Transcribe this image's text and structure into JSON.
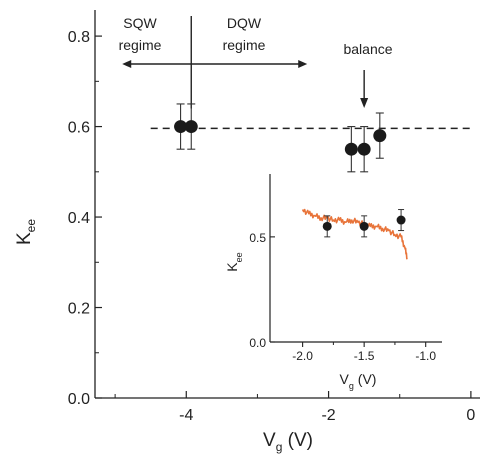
{
  "chart_data": [
    {
      "type": "scatter",
      "title": "",
      "xlabel": "V",
      "xlabel_sub": "g",
      "xlabel_unit": " (V)",
      "ylabel": "K",
      "ylabel_sub": "ee",
      "xlim": [
        -5.1,
        0.1
      ],
      "ylim": [
        0.0,
        0.84
      ],
      "x_ticks": [
        -4,
        -2,
        0
      ],
      "x_tick_labels": [
        "-4",
        "-2",
        "0"
      ],
      "y_ticks": [
        0.0,
        0.2,
        0.4,
        0.6,
        0.8
      ],
      "y_tick_labels": [
        "0.0",
        "0.2",
        "0.4",
        "0.6",
        "0.8"
      ],
      "grid": false,
      "series": [
        {
          "marker_color": "#1a1a1a",
          "x": [
            -4.08,
            -3.93,
            -1.68,
            -1.5,
            -1.28
          ],
          "y": [
            0.6,
            0.6,
            0.55,
            0.55,
            0.58
          ],
          "err": [
            0.05,
            0.05,
            0.05,
            0.05,
            0.05
          ]
        }
      ],
      "reference_line": {
        "y": 0.596,
        "x_from": -4.5,
        "x_to": 0.0,
        "style": "dashed"
      },
      "annotations": {
        "sqw_line1": "SQW",
        "sqw_line2": "regime",
        "dqw_line1": "DQW",
        "dqw_line2": "regime",
        "balance": "balance",
        "divider_x": -3.93,
        "arrow_from": -4.9,
        "arrow_to": -2.3,
        "balance_x": -1.5
      }
    },
    {
      "type": "line",
      "title": "",
      "xlabel": "V",
      "xlabel_sub": "g",
      "xlabel_unit": " (V)",
      "ylabel": "K",
      "ylabel_sub": "ee",
      "xlim": [
        -2.2,
        -0.9
      ],
      "ylim": [
        0.0,
        0.78
      ],
      "x_ticks": [
        -2.0,
        -1.5,
        -1.0
      ],
      "x_tick_labels": [
        "-2.0",
        "-1.5",
        "-1.0"
      ],
      "y_ticks": [
        0.0,
        0.5
      ],
      "y_tick_labels": [
        "0.0",
        "0.5"
      ],
      "series": [
        {
          "line_color": "#e8743a",
          "x": [
            -2.0,
            -1.95,
            -1.9,
            -1.85,
            -1.8,
            -1.75,
            -1.7,
            -1.65,
            -1.6,
            -1.55,
            -1.5,
            -1.45,
            -1.4,
            -1.35,
            -1.3,
            -1.25,
            -1.2,
            -1.17,
            -1.15
          ],
          "y": [
            0.63,
            0.61,
            0.6,
            0.59,
            0.59,
            0.58,
            0.58,
            0.57,
            0.58,
            0.57,
            0.56,
            0.55,
            0.55,
            0.54,
            0.53,
            0.51,
            0.5,
            0.45,
            0.4
          ]
        },
        {
          "marker_color": "#1a1a1a",
          "x": [
            -1.8,
            -1.5,
            -1.2
          ],
          "y": [
            0.55,
            0.55,
            0.58
          ],
          "err": [
            0.05,
            0.05,
            0.05
          ]
        }
      ]
    }
  ]
}
